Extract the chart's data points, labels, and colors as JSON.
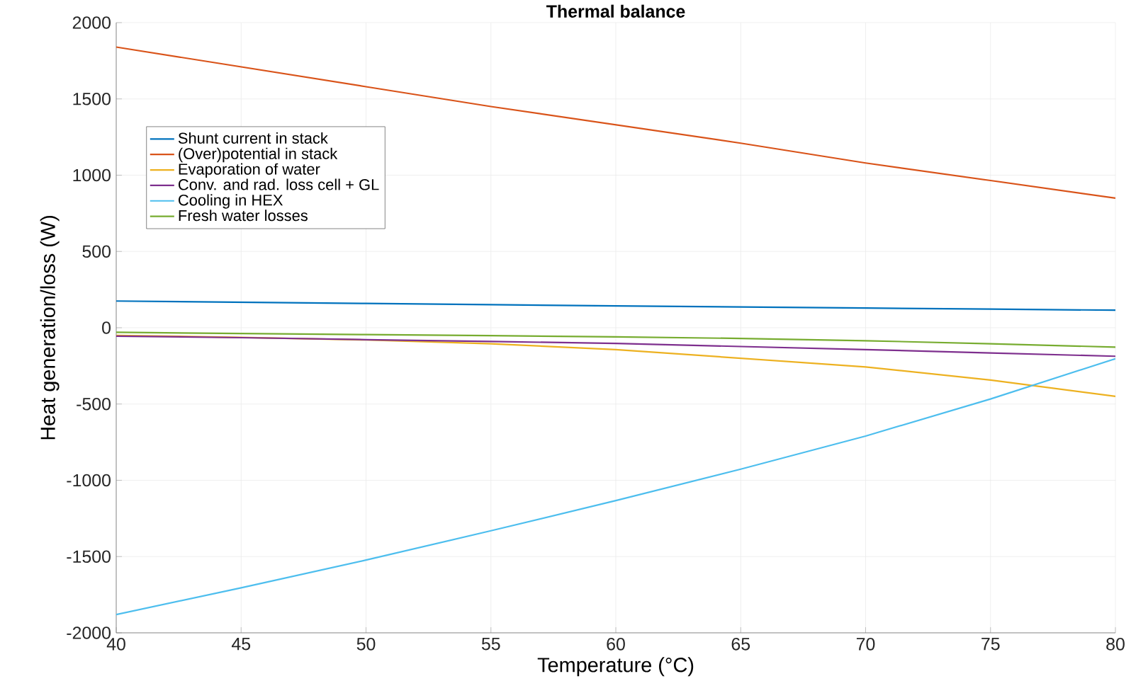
{
  "chart_data": {
    "type": "line",
    "title": "Thermal balance",
    "xlabel": "Temperature (°C)",
    "ylabel": "Heat generation/loss (W)",
    "x": [
      40,
      45,
      50,
      55,
      60,
      65,
      70,
      75,
      80
    ],
    "series": [
      {
        "name": "Shunt current in stack",
        "color": "#0072bd",
        "values": [
          175,
          167,
          159,
          151,
          143,
          136,
          129,
          122,
          115
        ]
      },
      {
        "name": "(Over)potential in stack",
        "color": "#d95319",
        "values": [
          1840,
          1710,
          1580,
          1450,
          1330,
          1210,
          1080,
          965,
          850
        ]
      },
      {
        "name": "Evaporation of water",
        "color": "#edb120",
        "values": [
          -50,
          -63,
          -80,
          -105,
          -143,
          -200,
          -257,
          -343,
          -450
        ]
      },
      {
        "name": "Conv. and rad. loss cell + GL",
        "color": "#7e2f8e",
        "values": [
          -55,
          -65,
          -78,
          -90,
          -103,
          -123,
          -143,
          -165,
          -187
        ]
      },
      {
        "name": "Cooling in HEX",
        "color": "#4dbeee",
        "values": [
          -1880,
          -1705,
          -1523,
          -1331,
          -1133,
          -927,
          -710,
          -467,
          -203
        ]
      },
      {
        "name": "Fresh water losses",
        "color": "#77ac30",
        "values": [
          -30,
          -38,
          -45,
          -52,
          -60,
          -70,
          -85,
          -105,
          -127
        ]
      }
    ],
    "xlim": [
      40,
      80
    ],
    "ylim": [
      -2000,
      2000
    ],
    "xticks": [
      40,
      45,
      50,
      55,
      60,
      65,
      70,
      75,
      80
    ],
    "yticks": [
      -2000,
      -1500,
      -1000,
      -500,
      0,
      500,
      1000,
      1500,
      2000
    ],
    "grid": true,
    "legend": "top left",
    "marker": "none",
    "line_style": "solid"
  }
}
